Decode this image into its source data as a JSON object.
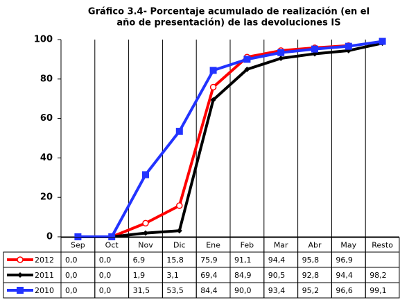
{
  "chart_data": {
    "type": "line",
    "title": [
      "Gráfico 3.4- Porcentaje acumulado de realización (en el",
      "año de presentación) de las devoluciones IS"
    ],
    "categories": [
      "Sep",
      "Oct",
      "Nov",
      "Dic",
      "Ene",
      "Feb",
      "Mar",
      "Abr",
      "May",
      "Resto"
    ],
    "series": [
      {
        "name": "2012",
        "color": "#ff0000",
        "marker": "circle",
        "values": [
          0.0,
          0.0,
          6.9,
          15.8,
          75.9,
          91.1,
          94.4,
          95.8,
          96.9,
          null
        ],
        "value_labels": [
          "0,0",
          "0,0",
          "6,9",
          "15,8",
          "75,9",
          "91,1",
          "94,4",
          "95,8",
          "96,9",
          null
        ]
      },
      {
        "name": "2011",
        "color": "#000000",
        "marker": "diamond",
        "values": [
          0.0,
          0.0,
          1.9,
          3.1,
          69.4,
          84.9,
          90.5,
          92.8,
          94.4,
          98.2
        ],
        "value_labels": [
          "0,0",
          "0,0",
          "1,9",
          "3,1",
          "69,4",
          "84,9",
          "90,5",
          "92,8",
          "94,4",
          "98,2"
        ]
      },
      {
        "name": "2010",
        "color": "#2233ff",
        "marker": "square",
        "values": [
          0.0,
          0.0,
          31.5,
          53.5,
          84.4,
          90.0,
          93.4,
          95.2,
          96.6,
          99.1
        ],
        "value_labels": [
          "0,0",
          "0,0",
          "31,5",
          "53,5",
          "84,4",
          "90,0",
          "93,4",
          "95,2",
          "96,6",
          "99,1"
        ]
      }
    ],
    "ylim": [
      0,
      100
    ],
    "yticks": [
      0,
      20,
      40,
      60,
      80,
      100
    ],
    "grid": "vertical",
    "legend": "table"
  }
}
